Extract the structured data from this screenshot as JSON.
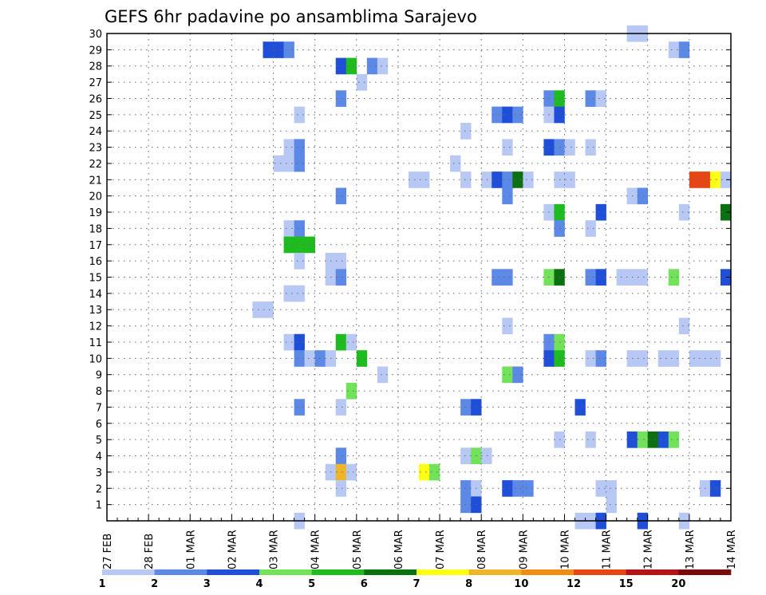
{
  "chart_data": {
    "type": "heatmap",
    "title": "GEFS 6hr padavine po ansamblima Sarajevo",
    "xlabel": "",
    "ylabel": "",
    "x_ticks": [
      "27 FEB",
      "28 FEB",
      "01 MAR",
      "02 MAR",
      "03 MAR",
      "04 MAR",
      "05 MAR",
      "06 MAR",
      "07 MAR",
      "08 MAR",
      "09 MAR",
      "10 MAR",
      "11 MAR",
      "12 MAR",
      "13 MAR",
      "14 MAR"
    ],
    "y_ticks": [
      "1",
      "2",
      "3",
      "4",
      "5",
      "6",
      "7",
      "8",
      "9",
      "10",
      "11",
      "12",
      "13",
      "14",
      "15",
      "16",
      "17",
      "18",
      "19",
      "20",
      "21",
      "22",
      "23",
      "24",
      "25",
      "26",
      "27",
      "28",
      "29",
      "30"
    ],
    "x_range_steps": [
      0,
      60
    ],
    "y_range": [
      0,
      30
    ],
    "grid": true,
    "legend": {
      "position": "bottom",
      "labels": [
        "1",
        "2",
        "3",
        "4",
        "5",
        "6",
        "7",
        "8",
        "10",
        "12",
        "15",
        "20"
      ],
      "colors": [
        "#b8c8f5",
        "#5c88e6",
        "#1f4fd8",
        "#72e25a",
        "#1fbc1f",
        "#0a7010",
        "#ffff14",
        "#f0b428",
        "#f08c14",
        "#e64614",
        "#b41414",
        "#780a0a"
      ]
    },
    "cells_format": "[member, step_start, step_span, level]",
    "cells": [
      [
        30,
        50,
        2,
        0
      ],
      [
        29,
        15,
        2,
        2
      ],
      [
        29,
        17,
        1,
        1
      ],
      [
        29,
        54,
        1,
        0
      ],
      [
        29,
        55,
        1,
        1
      ],
      [
        28,
        22,
        1,
        2
      ],
      [
        28,
        23,
        1,
        4
      ],
      [
        28,
        25,
        1,
        1
      ],
      [
        28,
        26,
        1,
        0
      ],
      [
        27,
        24,
        1,
        0
      ],
      [
        26,
        22,
        1,
        1
      ],
      [
        26,
        42,
        1,
        1
      ],
      [
        26,
        43,
        1,
        4
      ],
      [
        26,
        46,
        1,
        1
      ],
      [
        26,
        47,
        1,
        0
      ],
      [
        25,
        18,
        1,
        0
      ],
      [
        25,
        37,
        1,
        1
      ],
      [
        25,
        38,
        1,
        2
      ],
      [
        25,
        39,
        1,
        1
      ],
      [
        25,
        42,
        1,
        0
      ],
      [
        25,
        43,
        1,
        2
      ],
      [
        24,
        34,
        1,
        0
      ],
      [
        23,
        17,
        1,
        0
      ],
      [
        23,
        18,
        1,
        1
      ],
      [
        23,
        38,
        1,
        0
      ],
      [
        23,
        42,
        1,
        2
      ],
      [
        23,
        43,
        1,
        1
      ],
      [
        23,
        44,
        1,
        0
      ],
      [
        23,
        46,
        1,
        0
      ],
      [
        22,
        16,
        2,
        0
      ],
      [
        22,
        18,
        1,
        1
      ],
      [
        22,
        33,
        1,
        0
      ],
      [
        21,
        29,
        2,
        0
      ],
      [
        21,
        34,
        1,
        0
      ],
      [
        21,
        36,
        1,
        0
      ],
      [
        21,
        37,
        1,
        2
      ],
      [
        21,
        38,
        1,
        1
      ],
      [
        21,
        39,
        1,
        5
      ],
      [
        21,
        40,
        1,
        0
      ],
      [
        21,
        43,
        2,
        0
      ],
      [
        21,
        56,
        2,
        9
      ],
      [
        21,
        58,
        1,
        6
      ],
      [
        21,
        59,
        1,
        0
      ],
      [
        20,
        22,
        1,
        1
      ],
      [
        20,
        38,
        1,
        1
      ],
      [
        20,
        50,
        1,
        0
      ],
      [
        20,
        51,
        1,
        1
      ],
      [
        19,
        42,
        1,
        0
      ],
      [
        19,
        43,
        1,
        4
      ],
      [
        19,
        47,
        1,
        2
      ],
      [
        19,
        55,
        1,
        0
      ],
      [
        19,
        59,
        1,
        5
      ],
      [
        18,
        17,
        1,
        0
      ],
      [
        18,
        18,
        1,
        1
      ],
      [
        18,
        43,
        1,
        1
      ],
      [
        18,
        46,
        1,
        0
      ],
      [
        17,
        17,
        3,
        4
      ],
      [
        16,
        18,
        1,
        0
      ],
      [
        16,
        21,
        2,
        0
      ],
      [
        15,
        21,
        1,
        0
      ],
      [
        15,
        22,
        1,
        1
      ],
      [
        15,
        37,
        2,
        1
      ],
      [
        15,
        42,
        1,
        3
      ],
      [
        15,
        43,
        1,
        5
      ],
      [
        15,
        46,
        1,
        1
      ],
      [
        15,
        47,
        1,
        2
      ],
      [
        15,
        49,
        3,
        0
      ],
      [
        15,
        54,
        1,
        3
      ],
      [
        15,
        59,
        1,
        2
      ],
      [
        14,
        17,
        2,
        0
      ],
      [
        13,
        14,
        2,
        0
      ],
      [
        12,
        38,
        1,
        0
      ],
      [
        12,
        55,
        1,
        0
      ],
      [
        11,
        17,
        1,
        0
      ],
      [
        11,
        18,
        1,
        2
      ],
      [
        11,
        22,
        1,
        4
      ],
      [
        11,
        23,
        1,
        0
      ],
      [
        11,
        42,
        1,
        1
      ],
      [
        11,
        43,
        1,
        3
      ],
      [
        10,
        18,
        1,
        1
      ],
      [
        10,
        19,
        1,
        0
      ],
      [
        10,
        20,
        1,
        1
      ],
      [
        10,
        21,
        1,
        0
      ],
      [
        10,
        24,
        1,
        4
      ],
      [
        10,
        42,
        1,
        2
      ],
      [
        10,
        43,
        1,
        4
      ],
      [
        10,
        46,
        1,
        0
      ],
      [
        10,
        47,
        1,
        1
      ],
      [
        10,
        50,
        2,
        0
      ],
      [
        10,
        53,
        2,
        0
      ],
      [
        10,
        56,
        3,
        0
      ],
      [
        9,
        26,
        1,
        0
      ],
      [
        9,
        38,
        1,
        3
      ],
      [
        9,
        39,
        1,
        1
      ],
      [
        8,
        23,
        1,
        3
      ],
      [
        7,
        18,
        1,
        1
      ],
      [
        7,
        22,
        1,
        0
      ],
      [
        7,
        34,
        1,
        1
      ],
      [
        7,
        35,
        1,
        2
      ],
      [
        7,
        45,
        1,
        2
      ],
      [
        5,
        43,
        1,
        0
      ],
      [
        5,
        46,
        1,
        0
      ],
      [
        5,
        50,
        1,
        2
      ],
      [
        5,
        51,
        1,
        3
      ],
      [
        5,
        52,
        1,
        5
      ],
      [
        5,
        53,
        1,
        2
      ],
      [
        5,
        54,
        1,
        3
      ],
      [
        4,
        22,
        1,
        1
      ],
      [
        4,
        34,
        1,
        0
      ],
      [
        4,
        35,
        1,
        3
      ],
      [
        4,
        36,
        1,
        0
      ],
      [
        3,
        21,
        1,
        0
      ],
      [
        3,
        22,
        1,
        7
      ],
      [
        3,
        23,
        1,
        0
      ],
      [
        3,
        30,
        1,
        6
      ],
      [
        3,
        31,
        1,
        3
      ],
      [
        2,
        22,
        1,
        0
      ],
      [
        2,
        34,
        1,
        1
      ],
      [
        2,
        35,
        1,
        0
      ],
      [
        2,
        38,
        1,
        2
      ],
      [
        2,
        39,
        2,
        1
      ],
      [
        2,
        47,
        2,
        0
      ],
      [
        2,
        57,
        1,
        0
      ],
      [
        2,
        58,
        1,
        2
      ],
      [
        1,
        34,
        1,
        1
      ],
      [
        1,
        35,
        1,
        2
      ],
      [
        1,
        48,
        1,
        0
      ],
      [
        0,
        18,
        1,
        0
      ],
      [
        0,
        45,
        2,
        0
      ],
      [
        0,
        47,
        1,
        2
      ],
      [
        0,
        51,
        1,
        2
      ],
      [
        0,
        55,
        1,
        0
      ]
    ]
  }
}
